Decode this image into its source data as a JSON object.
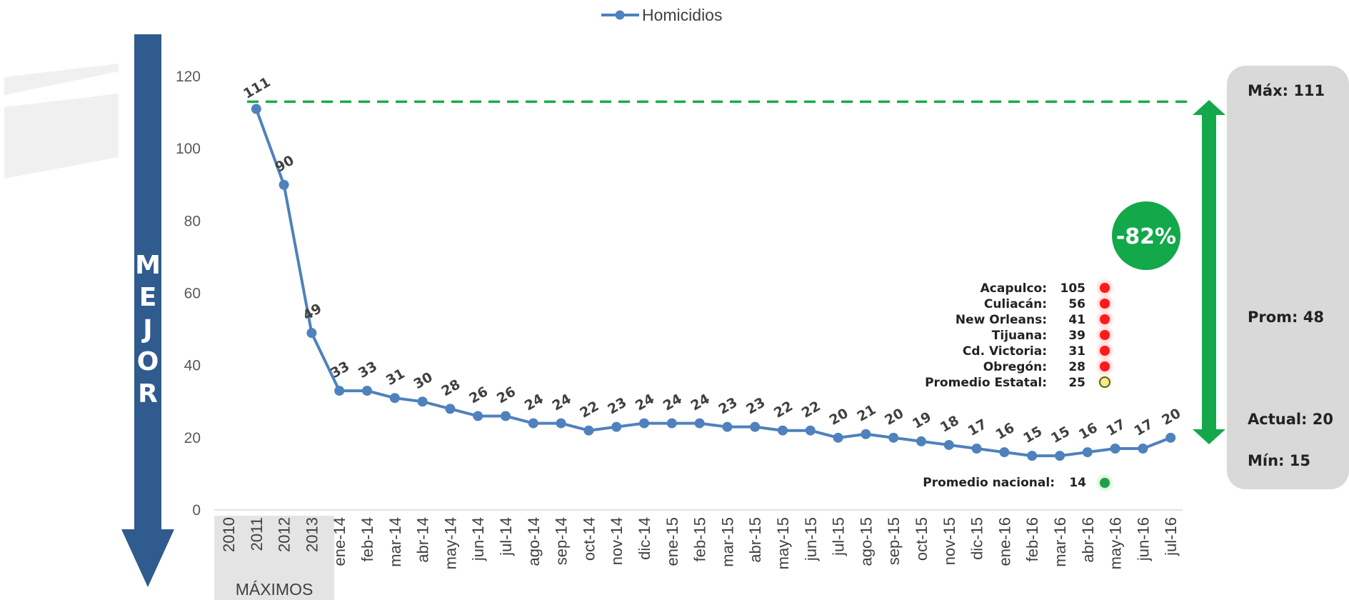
{
  "chart_data": {
    "type": "line",
    "series": [
      {
        "name": "Homicidios",
        "color": "#4f81bd",
        "values": [
          111,
          90,
          49,
          33,
          33,
          31,
          30,
          28,
          26,
          26,
          24,
          24,
          22,
          23,
          24,
          24,
          24,
          23,
          23,
          22,
          22,
          20,
          21,
          20,
          19,
          18,
          17,
          16,
          15,
          15,
          16,
          17,
          17,
          20
        ],
        "labels": [
          "111",
          "90",
          "49",
          "33",
          "33",
          "31",
          "30",
          "28",
          "26",
          "26",
          "24",
          "24",
          "22",
          "23",
          "24",
          "24",
          "24",
          "23",
          "23",
          "22",
          "22",
          "20",
          "21",
          "20",
          "19",
          "18",
          "17",
          "16",
          "15",
          "15",
          "16",
          "17",
          "17",
          "20"
        ]
      }
    ],
    "categories": [
      "2011",
      "2012",
      "2013",
      "ene-14",
      "feb-14",
      "mar-14",
      "abr-14",
      "may-14",
      "jun-14",
      "jul-14",
      "ago-14",
      "sep-14",
      "oct-14",
      "nov-14",
      "dic-14",
      "ene-15",
      "feb-15",
      "mar-15",
      "abr-15",
      "may-15",
      "jun-15",
      "jul-15",
      "ago-15",
      "sep-15",
      "oct-15",
      "nov-15",
      "dic-15",
      "ene-16",
      "feb-16",
      "mar-16",
      "abr-16",
      "may-16",
      "jun-16",
      "jul-16"
    ],
    "extra_category": "2010",
    "ylim": [
      0,
      120
    ],
    "yticks": [
      "0",
      "20",
      "40",
      "60",
      "80",
      "100",
      "120"
    ],
    "grid": false,
    "legend_position": "top-center",
    "max_reference_line": 113,
    "max_line_color": "#1aab4c",
    "group_label": "MÁXIMOS"
  },
  "side_arrow": {
    "letters": [
      "M",
      "E",
      "J",
      "O",
      "R"
    ],
    "color": "#2f5b8e"
  },
  "reduction": {
    "text": "-82%",
    "color": "#13a84a"
  },
  "cities": [
    {
      "name": "Acapulco:",
      "value": "105",
      "status": "red"
    },
    {
      "name": "Culiacán:",
      "value": "56",
      "status": "red"
    },
    {
      "name": "New Orleans:",
      "value": "41",
      "status": "red"
    },
    {
      "name": "Tijuana:",
      "value": "39",
      "status": "red"
    },
    {
      "name": "Cd. Victoria:",
      "value": "31",
      "status": "red"
    },
    {
      "name": "Obregón:",
      "value": "28",
      "status": "red"
    },
    {
      "name": "Promedio Estatal:",
      "value": "25",
      "status": "yellow"
    }
  ],
  "national": {
    "name": "Promedio nacional:",
    "value": "14",
    "status": "green"
  },
  "stats": {
    "max": "Máx: 111",
    "avg": "Prom: 48",
    "current": "Actual: 20",
    "min": "Mín:  15"
  },
  "colors": {
    "red": "#ff1a1a",
    "yellow": "#f3f07a",
    "green": "#1ea04a",
    "panel": "#d9d9d9"
  }
}
